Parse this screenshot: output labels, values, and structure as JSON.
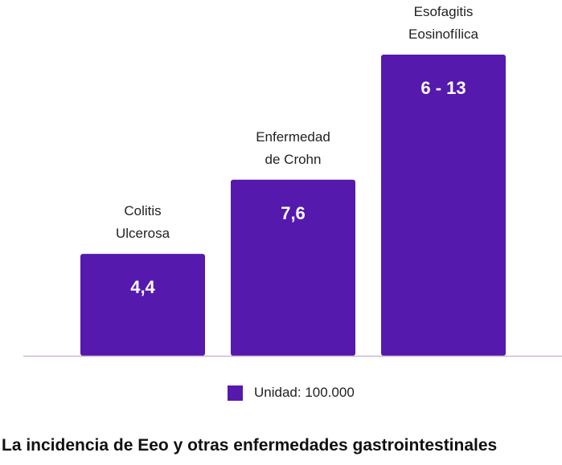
{
  "chart_data": {
    "type": "bar",
    "categories": [
      [
        "Colitis",
        "Ulcerosa"
      ],
      [
        "Enfermedad",
        "de Crohn"
      ],
      [
        "Esofagitis",
        "Eosinofílica"
      ]
    ],
    "values": [
      4.4,
      7.6,
      13
    ],
    "value_labels": [
      "4,4",
      "7,6",
      "6 - 13"
    ],
    "legend": [
      {
        "label": "Unidad: 100.000",
        "color": "#5519ae"
      }
    ],
    "legend_position": "bottom-center",
    "grid": false,
    "bar_color": "#5519ae",
    "axis_color": "#cdb7cf",
    "ylim": [
      0,
      13
    ]
  },
  "caption": "La incidencia de Eeo y otras enfermedades gastrointestinales"
}
